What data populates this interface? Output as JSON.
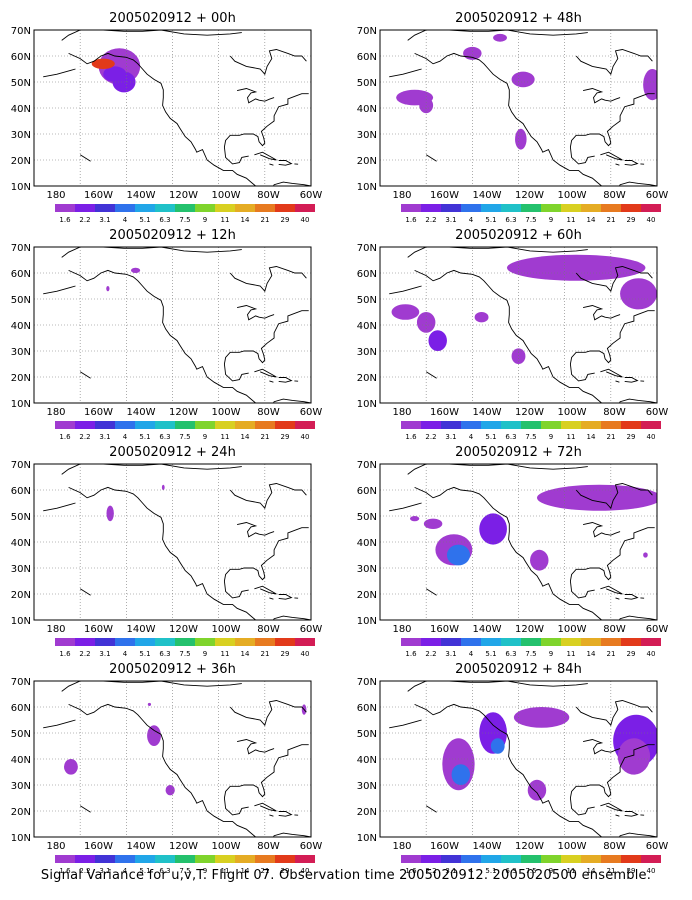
{
  "colors": {
    "scale": [
      "#a03bd0",
      "#7b1fe6",
      "#4233d6",
      "#2f72ec",
      "#21a6e8",
      "#20c1c8",
      "#24c16d",
      "#7fd42c",
      "#d8d021",
      "#e5ac24",
      "#e77a20",
      "#e23a1a",
      "#d31d55"
    ]
  },
  "legend_labels": [
    "1.6",
    "2.2",
    "3.1",
    "4",
    "5.1",
    "6.3",
    "7.5",
    "9",
    "11",
    "14",
    "21",
    "29",
    "40"
  ],
  "x_ticks": [
    "180",
    "160W",
    "140W",
    "120W",
    "100W",
    "80W",
    "60W"
  ],
  "y_ticks": [
    "70N",
    "60N",
    "50N",
    "40N",
    "30N",
    "20N",
    "10N"
  ],
  "panels": [
    {
      "title": "2005020912 + 00h"
    },
    {
      "title": "2005020912 + 48h"
    },
    {
      "title": "2005020912 + 12h"
    },
    {
      "title": "2005020912 + 60h"
    },
    {
      "title": "2005020912 + 24h"
    },
    {
      "title": "2005020912 + 72h"
    },
    {
      "title": "2005020912 + 36h"
    },
    {
      "title": "2005020912 + 84h"
    }
  ],
  "caption": "Signal Variance for u,v,T. Flight 07. Observation time 2005020912. 2005020500 ensemble."
}
